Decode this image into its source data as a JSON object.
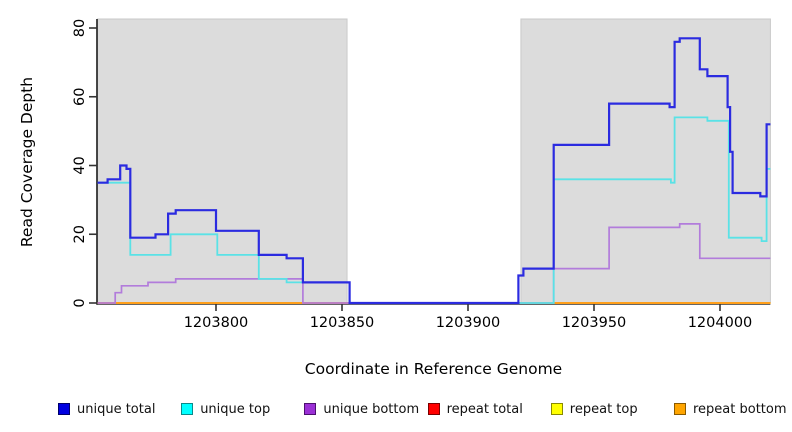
{
  "chart_data": {
    "type": "line",
    "subtype": "step-coverage",
    "title": "",
    "xlabel": "Coordinate in Reference Genome",
    "ylabel": "Read Coverage Depth",
    "xlim": [
      1203753,
      1204020
    ],
    "ylim": [
      0,
      82
    ],
    "x_ticks": [
      1203800,
      1203850,
      1203900,
      1203950,
      1204000
    ],
    "y_ticks": [
      0,
      20,
      40,
      60,
      80
    ],
    "grid": false,
    "legend_position": "bottom",
    "axis_color": "#333333",
    "tick_label_color": "#000000",
    "shaded_regions": [
      {
        "x0": 1203753,
        "x1": 1203852,
        "color": "#dcdcdc",
        "edge": "#c9c9c9"
      },
      {
        "x0": 1203921,
        "x1": 1204020,
        "color": "#dcdcdc",
        "edge": "#c9c9c9"
      }
    ],
    "draw_order": [
      "repeat total",
      "repeat top",
      "repeat bottom",
      "unique bottom",
      "unique top",
      "unique total"
    ],
    "series": [
      {
        "name": "unique total",
        "line_color": "#2b2be0",
        "line_width": 2.2,
        "swatch_fill": "#0000e0",
        "swatch_border": "#00006a",
        "points": [
          [
            1203753,
            35
          ],
          [
            1203757,
            36
          ],
          [
            1203762,
            40
          ],
          [
            1203764.5,
            39
          ],
          [
            1203766,
            19
          ],
          [
            1203776,
            20
          ],
          [
            1203781,
            26
          ],
          [
            1203784,
            27
          ],
          [
            1203800,
            21
          ],
          [
            1203817,
            14
          ],
          [
            1203828,
            13
          ],
          [
            1203834.5,
            6
          ],
          [
            1203853,
            0
          ],
          [
            1203920,
            8
          ],
          [
            1203922,
            10
          ],
          [
            1203934,
            46
          ],
          [
            1203956,
            58
          ],
          [
            1203980,
            57
          ],
          [
            1203982,
            76
          ],
          [
            1203984,
            77
          ],
          [
            1203992,
            68
          ],
          [
            1203995,
            66
          ],
          [
            1204003,
            57
          ],
          [
            1204004,
            44
          ],
          [
            1204005,
            32
          ],
          [
            1204016,
            31
          ],
          [
            1204018.5,
            52
          ],
          [
            1204020,
            52
          ]
        ]
      },
      {
        "name": "unique top",
        "line_color": "#5ae2e6",
        "line_width": 1.8,
        "swatch_fill": "#00ffff",
        "swatch_border": "#0b8a8a",
        "points": [
          [
            1203753,
            35
          ],
          [
            1203766,
            14
          ],
          [
            1203782,
            20
          ],
          [
            1203800.5,
            14
          ],
          [
            1203817,
            7
          ],
          [
            1203828,
            6
          ],
          [
            1203853,
            0
          ],
          [
            1203934,
            36
          ],
          [
            1203980.5,
            35
          ],
          [
            1203982,
            54
          ],
          [
            1203995,
            53
          ],
          [
            1204003.5,
            19
          ],
          [
            1204016.5,
            18
          ],
          [
            1204018.5,
            39
          ],
          [
            1204020,
            39
          ]
        ]
      },
      {
        "name": "unique bottom",
        "line_color": "#b27cdb",
        "line_width": 1.7,
        "swatch_fill": "#9b30d6",
        "swatch_border": "#4d1070",
        "points": [
          [
            1203753,
            0
          ],
          [
            1203760,
            3
          ],
          [
            1203762.5,
            5
          ],
          [
            1203773,
            6
          ],
          [
            1203784,
            7
          ],
          [
            1203834.5,
            0
          ],
          [
            1203934,
            10
          ],
          [
            1203956,
            22
          ],
          [
            1203984,
            23
          ],
          [
            1203992,
            13
          ],
          [
            1204020,
            13
          ]
        ]
      },
      {
        "name": "repeat total",
        "line_color": "#e03030",
        "line_width": 2,
        "swatch_fill": "#ff0000",
        "swatch_border": "#7a0000",
        "points": [
          [
            1203753,
            0
          ],
          [
            1204020,
            0
          ]
        ]
      },
      {
        "name": "repeat top",
        "line_color": "#ffe400",
        "line_width": 2,
        "swatch_fill": "#ffff00",
        "swatch_border": "#8a8a00",
        "points": [
          [
            1203753,
            0
          ],
          [
            1204020,
            0
          ]
        ]
      },
      {
        "name": "repeat bottom",
        "line_color": "#ff9f1a",
        "line_width": 2,
        "swatch_fill": "#ffa500",
        "swatch_border": "#8a5a00",
        "points": [
          [
            1203753,
            0
          ],
          [
            1204020,
            0
          ]
        ]
      }
    ]
  }
}
